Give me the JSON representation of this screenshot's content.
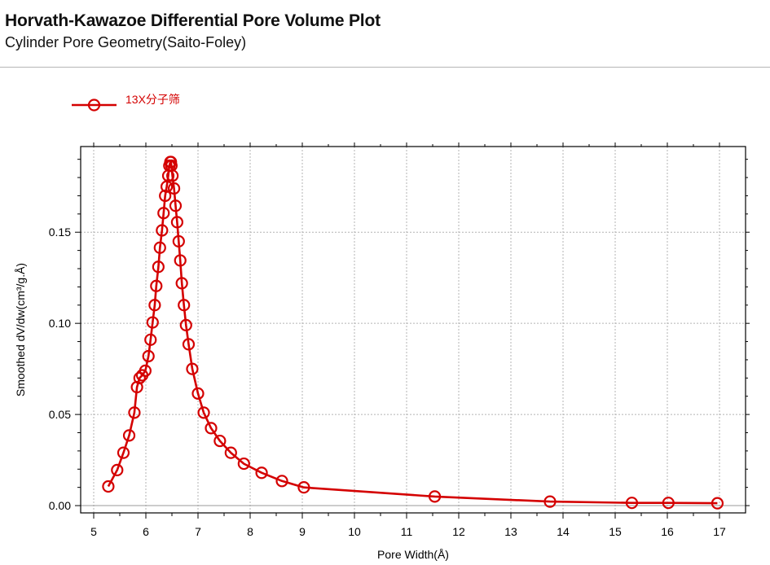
{
  "header": {
    "title": "Horvath-Kawazoe Differential Pore Volume Plot",
    "subtitle": "Cylinder Pore Geometry(Saito-Foley)"
  },
  "chart_data": {
    "type": "line",
    "title": "Horvath-Kawazoe Differential Pore Volume Plot",
    "subtitle": "Cylinder Pore Geometry(Saito-Foley)",
    "xlabel": "Pore Width(Å)",
    "ylabel": "Smoothed dV/dw(cm³/g.Å)",
    "xlim": [
      4.75,
      17.5
    ],
    "ylim": [
      -0.004,
      0.197
    ],
    "xticks": [
      5,
      6,
      7,
      8,
      9,
      10,
      11,
      12,
      13,
      14,
      15,
      16,
      17
    ],
    "yticks": [
      0.0,
      0.05,
      0.1,
      0.15
    ],
    "ytick_labels": [
      "0.00",
      "0.05",
      "0.10",
      "0.15"
    ],
    "grid": true,
    "legend_position": "top-left",
    "series": [
      {
        "name": "13X分子筛",
        "color": "#d40000",
        "marker": "open-circle",
        "points": [
          [
            5.28,
            0.0105
          ],
          [
            5.45,
            0.0195
          ],
          [
            5.57,
            0.029
          ],
          [
            5.68,
            0.0385
          ],
          [
            5.78,
            0.051
          ],
          [
            5.83,
            0.065
          ],
          [
            5.88,
            0.07
          ],
          [
            5.93,
            0.0715
          ],
          [
            5.99,
            0.074
          ],
          [
            6.05,
            0.082
          ],
          [
            6.09,
            0.091
          ],
          [
            6.13,
            0.1005
          ],
          [
            6.17,
            0.11
          ],
          [
            6.2,
            0.1205
          ],
          [
            6.24,
            0.131
          ],
          [
            6.27,
            0.1415
          ],
          [
            6.31,
            0.151
          ],
          [
            6.34,
            0.1605
          ],
          [
            6.37,
            0.17
          ],
          [
            6.4,
            0.175
          ],
          [
            6.43,
            0.181
          ],
          [
            6.45,
            0.1865
          ],
          [
            6.47,
            0.1885
          ],
          [
            6.48,
            0.1885
          ],
          [
            6.49,
            0.1865
          ],
          [
            6.51,
            0.181
          ],
          [
            6.54,
            0.174
          ],
          [
            6.57,
            0.1645
          ],
          [
            6.6,
            0.1555
          ],
          [
            6.63,
            0.145
          ],
          [
            6.66,
            0.1345
          ],
          [
            6.69,
            0.122
          ],
          [
            6.73,
            0.11
          ],
          [
            6.77,
            0.099
          ],
          [
            6.82,
            0.0885
          ],
          [
            6.89,
            0.075
          ],
          [
            7.0,
            0.0615
          ],
          [
            7.11,
            0.051
          ],
          [
            7.25,
            0.0425
          ],
          [
            7.42,
            0.0355
          ],
          [
            7.63,
            0.029
          ],
          [
            7.88,
            0.023
          ],
          [
            8.22,
            0.018
          ],
          [
            8.61,
            0.0135
          ],
          [
            9.03,
            0.01
          ],
          [
            11.54,
            0.005
          ],
          [
            13.75,
            0.0022
          ],
          [
            15.32,
            0.0015
          ],
          [
            16.02,
            0.0015
          ],
          [
            16.96,
            0.0013
          ]
        ]
      }
    ]
  }
}
